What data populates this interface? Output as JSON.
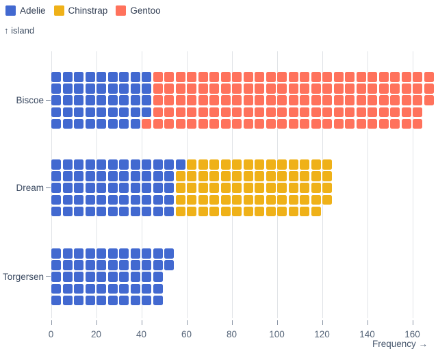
{
  "chart_data": {
    "type": "waffle",
    "orientation": "horizontal",
    "unit": 1,
    "rows_per_band": 5,
    "ylabel": "↑ island",
    "xlabel": "Frequency →",
    "categories": [
      "Biscoe",
      "Dream",
      "Torgersen"
    ],
    "series": [
      {
        "name": "Adelie",
        "color": "#4269d0",
        "values": [
          44,
          56,
          52
        ]
      },
      {
        "name": "Chinstrap",
        "color": "#efb118",
        "values": [
          0,
          68,
          0
        ]
      },
      {
        "name": "Gentoo",
        "color": "#ff725c",
        "values": [
          124,
          0,
          0
        ]
      }
    ],
    "totals": [
      168,
      124,
      52
    ],
    "x_ticks": [
      0,
      20,
      40,
      60,
      80,
      100,
      120,
      140,
      160
    ],
    "xlim": [
      0,
      170
    ],
    "grid": true,
    "legend_position": "top-left",
    "gridline_color": "#e0e3e7",
    "text_color": "#3b4a61"
  }
}
